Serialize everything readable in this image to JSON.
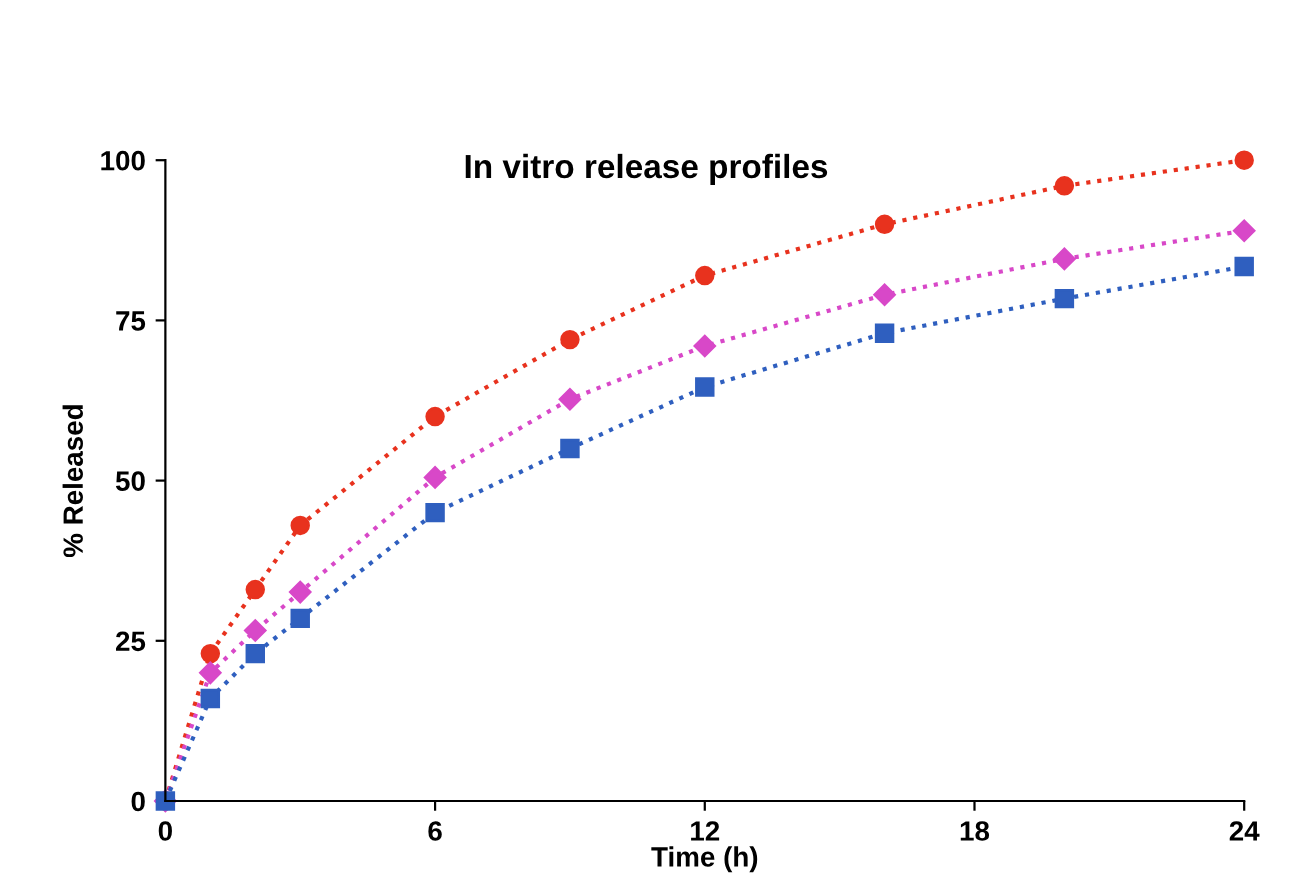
{
  "chart_data": {
    "type": "line",
    "title": "In vitro release profiles",
    "xlabel": "Time (h)",
    "ylabel": "% Released",
    "x": [
      0,
      1,
      2,
      3,
      6,
      9,
      12,
      16,
      20,
      24
    ],
    "series": [
      {
        "color": "#e8321e",
        "marker": "circle",
        "values": [
          0,
          23,
          33,
          43,
          60,
          72,
          82,
          90,
          96,
          100
        ]
      },
      {
        "color": "#d848c8",
        "marker": "diamond",
        "values": [
          0,
          20,
          26.6,
          32.6,
          50.5,
          62.7,
          71,
          79,
          84.6,
          89
        ]
      },
      {
        "color": "#2f5fbf",
        "marker": "square",
        "values": [
          0,
          16,
          23,
          28.5,
          45,
          55,
          64.6,
          73,
          78.4,
          83.4
        ]
      }
    ],
    "xlim": [
      0,
      24
    ],
    "ylim": [
      0,
      100
    ],
    "xticks": [
      0,
      6,
      12,
      18,
      24
    ],
    "yticks": [
      0,
      25,
      50,
      75,
      100
    ],
    "grid": false,
    "legend": false,
    "line_style": "dotted"
  }
}
